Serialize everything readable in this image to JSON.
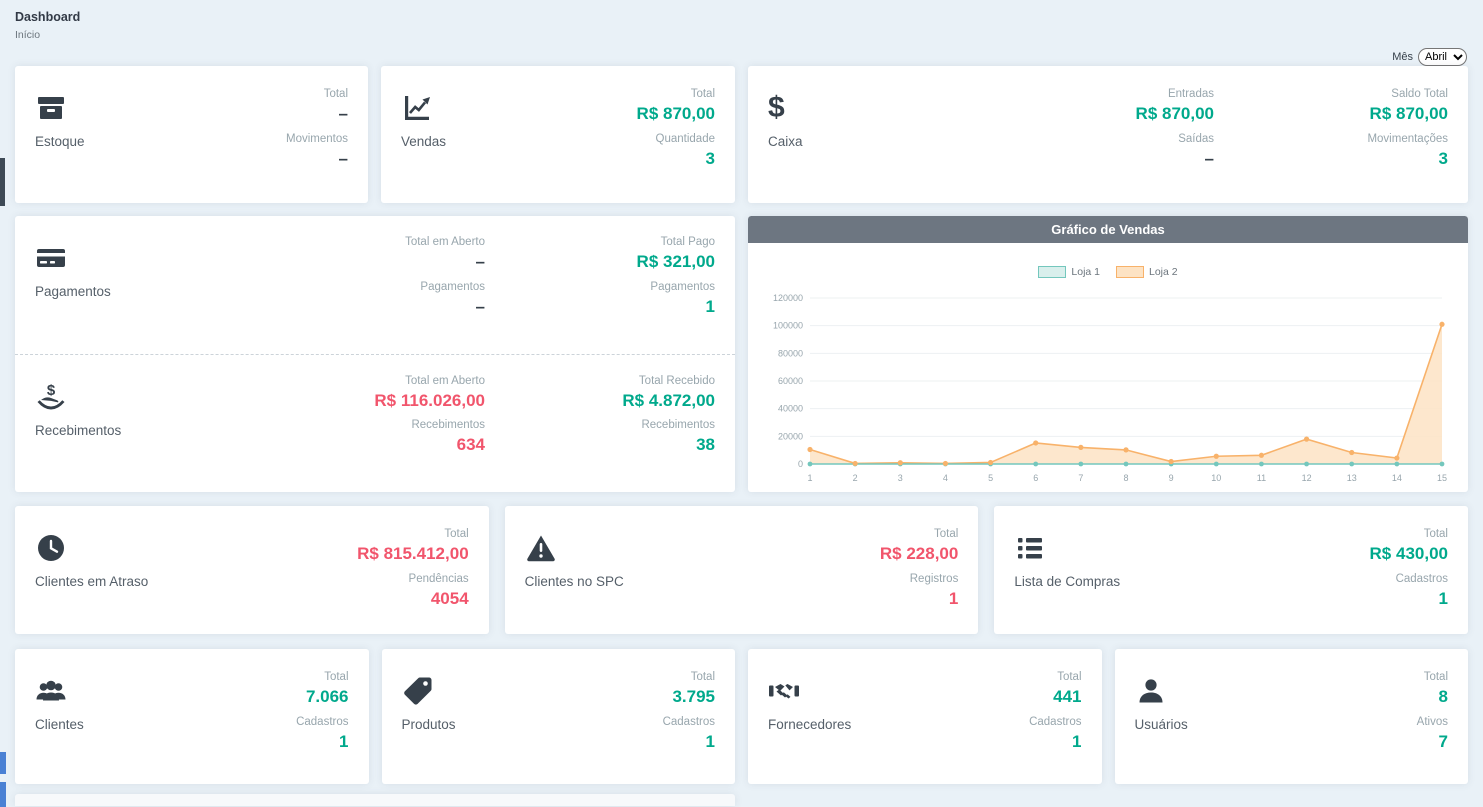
{
  "header": {
    "title": "Dashboard",
    "breadcrumb": "Início",
    "month_label": "Mês",
    "month_value": "Abril"
  },
  "icons": {
    "dollar": "$"
  },
  "colors": {
    "teal": "#00a98c",
    "red": "#f1556c",
    "icon_dark": "#36404a",
    "chart_header_bg": "#6d7681"
  },
  "cards": {
    "estoque": {
      "title": "Estoque",
      "stats": [
        {
          "label": "Total",
          "value": "–"
        },
        {
          "label": "Movimentos",
          "value": "–"
        }
      ]
    },
    "vendas": {
      "title": "Vendas",
      "stats": [
        {
          "label": "Total",
          "value": "R$ 870,00"
        },
        {
          "label": "Quantidade",
          "value": "3"
        }
      ]
    },
    "caixa": {
      "title": "Caixa",
      "col1": [
        {
          "label": "Entradas",
          "value": "R$ 870,00"
        },
        {
          "label": "Saídas",
          "value": "–"
        }
      ],
      "col2": [
        {
          "label": "Saldo Total",
          "value": "R$ 870,00"
        },
        {
          "label": "Movimentações",
          "value": "3"
        }
      ]
    },
    "pagamentos": {
      "title": "Pagamentos",
      "col1": [
        {
          "label": "Total em Aberto",
          "value": "–"
        },
        {
          "label": "Pagamentos",
          "value": "–"
        }
      ],
      "col2": [
        {
          "label": "Total Pago",
          "value": "R$ 321,00"
        },
        {
          "label": "Pagamentos",
          "value": "1"
        }
      ]
    },
    "recebimentos": {
      "title": "Recebimentos",
      "col1": [
        {
          "label": "Total em Aberto",
          "value": "R$ 116.026,00"
        },
        {
          "label": "Recebimentos",
          "value": "634"
        }
      ],
      "col2": [
        {
          "label": "Total Recebido",
          "value": "R$ 4.872,00"
        },
        {
          "label": "Recebimentos",
          "value": "38"
        }
      ]
    },
    "clientes_atraso": {
      "title": "Clientes em Atraso",
      "stats": [
        {
          "label": "Total",
          "value": "R$ 815.412,00"
        },
        {
          "label": "Pendências",
          "value": "4054"
        }
      ]
    },
    "clientes_spc": {
      "title": "Clientes no SPC",
      "stats": [
        {
          "label": "Total",
          "value": "R$ 228,00"
        },
        {
          "label": "Registros",
          "value": "1"
        }
      ]
    },
    "lista_compras": {
      "title": "Lista de Compras",
      "stats": [
        {
          "label": "Total",
          "value": "R$ 430,00"
        },
        {
          "label": "Cadastros",
          "value": "1"
        }
      ]
    },
    "clientes": {
      "title": "Clientes",
      "stats": [
        {
          "label": "Total",
          "value": "7.066"
        },
        {
          "label": "Cadastros",
          "value": "1"
        }
      ]
    },
    "produtos": {
      "title": "Produtos",
      "stats": [
        {
          "label": "Total",
          "value": "3.795"
        },
        {
          "label": "Cadastros",
          "value": "1"
        }
      ]
    },
    "fornecedores": {
      "title": "Fornecedores",
      "stats": [
        {
          "label": "Total",
          "value": "441"
        },
        {
          "label": "Cadastros",
          "value": "1"
        }
      ]
    },
    "usuarios": {
      "title": "Usuários",
      "stats": [
        {
          "label": "Total",
          "value": "8"
        },
        {
          "label": "Ativos",
          "value": "7"
        }
      ]
    }
  },
  "chart": {
    "title": "Gráfico de Vendas"
  },
  "chart_data": {
    "type": "line",
    "title": "Gráfico de Vendas",
    "x": [
      1,
      2,
      3,
      4,
      5,
      6,
      7,
      8,
      9,
      10,
      11,
      12,
      13,
      14,
      15
    ],
    "series": [
      {
        "name": "Loja 1",
        "color": "#74c7bd",
        "fill": "#d9efec",
        "values": [
          0,
          0,
          0,
          0,
          0,
          0,
          0,
          0,
          0,
          0,
          0,
          0,
          0,
          0,
          0
        ]
      },
      {
        "name": "Loja 2",
        "color": "#f8b26a",
        "fill": "#fde3c4",
        "values": [
          10500,
          400,
          900,
          400,
          1100,
          15200,
          12000,
          10200,
          1800,
          5600,
          6300,
          18000,
          8300,
          4300,
          101000
        ]
      }
    ],
    "ylim": [
      0,
      120000
    ],
    "yticks": [
      0,
      20000,
      40000,
      60000,
      80000,
      100000,
      120000
    ],
    "grid": true,
    "legend_position": "top"
  }
}
